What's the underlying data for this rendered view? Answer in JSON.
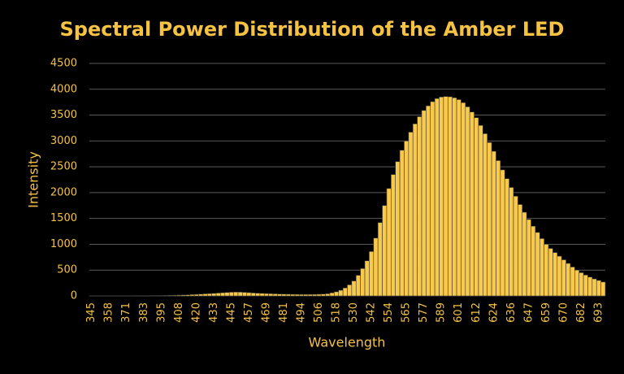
{
  "chart_data": {
    "type": "bar",
    "title": "Spectral Power Distribution of the Amber LED",
    "x_label": "Wavelength",
    "y_label": "Intensity",
    "categories": [
      "345",
      null,
      null,
      null,
      "358",
      null,
      null,
      null,
      "371",
      null,
      null,
      null,
      "383",
      null,
      null,
      null,
      "395",
      null,
      null,
      null,
      "408",
      null,
      null,
      null,
      "420",
      null,
      null,
      null,
      "433",
      null,
      null,
      null,
      "445",
      null,
      null,
      null,
      "457",
      null,
      null,
      null,
      "469",
      null,
      null,
      null,
      "481",
      null,
      null,
      null,
      "494",
      null,
      null,
      null,
      "506",
      null,
      null,
      null,
      "518",
      null,
      null,
      null,
      "530",
      null,
      null,
      null,
      "542",
      null,
      null,
      null,
      "554",
      null,
      null,
      null,
      "565",
      null,
      null,
      null,
      "577",
      null,
      null,
      null,
      "589",
      null,
      null,
      null,
      "601",
      null,
      null,
      null,
      "612",
      null,
      null,
      null,
      "624",
      null,
      null,
      null,
      "636",
      null,
      null,
      null,
      "647",
      null,
      null,
      null,
      "659",
      null,
      null,
      null,
      "670",
      null,
      null,
      null,
      "682",
      null,
      null,
      null,
      "693",
      null
    ],
    "values": [
      5,
      5,
      5,
      5,
      5,
      5,
      5,
      5,
      5,
      5,
      6,
      6,
      6,
      7,
      7,
      8,
      9,
      10,
      12,
      14,
      16,
      19,
      22,
      26,
      30,
      35,
      40,
      45,
      50,
      56,
      62,
      68,
      72,
      75,
      74,
      70,
      64,
      58,
      54,
      50,
      46,
      43,
      40,
      37,
      35,
      33,
      31,
      30,
      29,
      29,
      29,
      30,
      32,
      36,
      42,
      60,
      80,
      110,
      155,
      215,
      290,
      400,
      530,
      680,
      860,
      1120,
      1420,
      1750,
      2080,
      2350,
      2600,
      2820,
      3000,
      3170,
      3330,
      3470,
      3590,
      3680,
      3760,
      3820,
      3850,
      3860,
      3855,
      3835,
      3800,
      3740,
      3660,
      3560,
      3450,
      3300,
      3140,
      2970,
      2800,
      2620,
      2440,
      2270,
      2100,
      1930,
      1770,
      1620,
      1480,
      1350,
      1230,
      1110,
      1000,
      920,
      840,
      770,
      700,
      630,
      560,
      500,
      450,
      405,
      365,
      330,
      300,
      270
    ],
    "color": "#f8c94a",
    "ylim": [
      0,
      4500
    ],
    "yticks": [
      0,
      500,
      1000,
      1500,
      2000,
      2500,
      3000,
      3500,
      4000,
      4500
    ],
    "grid": true
  }
}
